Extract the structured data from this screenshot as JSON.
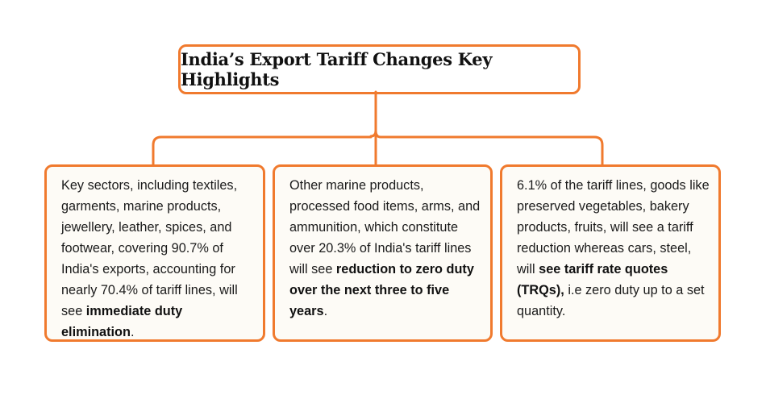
{
  "title": "India’s Export Tariff Changes Key Highlights",
  "colors": {
    "accent": "#F07A2E",
    "card_background": "#FDFBF6",
    "text": "#1b1b1b"
  },
  "cards": [
    {
      "text_before": "Key sectors, including textiles, garments, marine products, jewellery, leather, spices, and footwear, covering 90.7% of India's exports, accounting for nearly 70.4% of tariff lines, will see ",
      "bold": "immediate duty elimination",
      "text_after": "."
    },
    {
      "text_before": "Other marine products, processed food items, arms, and ammunition, which constitute over 20.3% of India's tariff lines will see ",
      "bold": "reduction to zero duty over the next three to five years",
      "text_after": "."
    },
    {
      "text_before": "6.1% of the tariff lines, goods like preserved vegetables, bakery products, fruits, will see a tariff reduction whereas cars, steel, will ",
      "bold": "see tariff rate quotes (TRQs),",
      "text_after": " i.e zero duty up to a set quantity."
    }
  ]
}
